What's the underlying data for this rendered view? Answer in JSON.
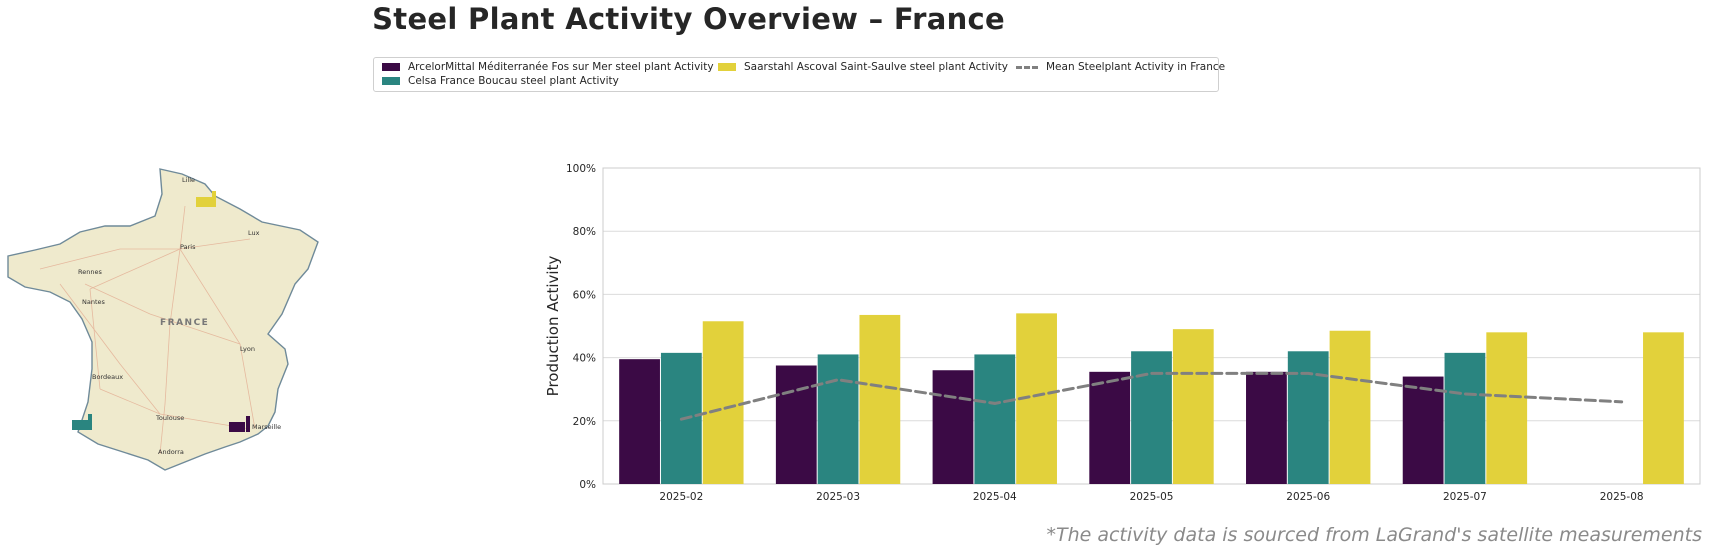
{
  "title": "Steel Plant Activity Overview – France",
  "legend": {
    "items": [
      {
        "label": "ArcelorMittal Méditerranée Fos sur Mer steel plant Activity",
        "color": "#3b0a45"
      },
      {
        "label": "Celsa France Boucau steel plant Activity",
        "color": "#2a8580"
      },
      {
        "label": "Saarstahl Ascoval Saint-Saulve steel plant Activity",
        "color": "#e2d13b"
      },
      {
        "label": "Mean Steelplant Activity in France",
        "color": "#808080",
        "style": "dashed-line"
      }
    ]
  },
  "map": {
    "country_label": "FRANCE",
    "cities": [
      "Lille",
      "Paris",
      "Rennes",
      "Nantes",
      "Lyon",
      "Bordeaux",
      "Toulouse",
      "Marseille",
      "Andorra",
      "Lux"
    ],
    "markers": [
      {
        "plant": "Saarstahl Ascoval Saint-Saulve",
        "icon": "factory-icon",
        "color": "#e2d13b"
      },
      {
        "plant": "Celsa France Boucau",
        "icon": "factory-icon",
        "color": "#2a8580"
      },
      {
        "plant": "ArcelorMittal Méditerranée Fos sur Mer",
        "icon": "factory-icon",
        "color": "#3b0a45"
      }
    ]
  },
  "chart_data": {
    "type": "bar",
    "categories": [
      "2025-02",
      "2025-03",
      "2025-04",
      "2025-05",
      "2025-06",
      "2025-07",
      "2025-08"
    ],
    "series": [
      {
        "name": "ArcelorMittal Méditerranée Fos sur Mer steel plant Activity",
        "color": "#3b0a45",
        "values": [
          39.5,
          37.5,
          36,
          35.5,
          35.5,
          34,
          null
        ]
      },
      {
        "name": "Celsa France Boucau steel plant Activity",
        "color": "#2a8580",
        "values": [
          41.5,
          41,
          41,
          42,
          42,
          41.5,
          null
        ]
      },
      {
        "name": "Saarstahl Ascoval Saint-Saulve steel plant Activity",
        "color": "#e2d13b",
        "values": [
          51.5,
          53.5,
          54,
          49,
          48.5,
          48,
          48
        ]
      }
    ],
    "line": {
      "name": "Mean Steelplant Activity in France",
      "color": "#808080",
      "style": "dashed",
      "values": [
        20.5,
        33,
        25.5,
        35,
        35,
        28.5,
        26
      ]
    },
    "ylabel": "Production Activity",
    "xlabel": "",
    "ylim": [
      0,
      100
    ],
    "yticks": [
      "0%",
      "20%",
      "40%",
      "60%",
      "80%",
      "100%"
    ],
    "grid": true
  },
  "footnote": "*The activity data is sourced from LaGrand's satellite measurements"
}
